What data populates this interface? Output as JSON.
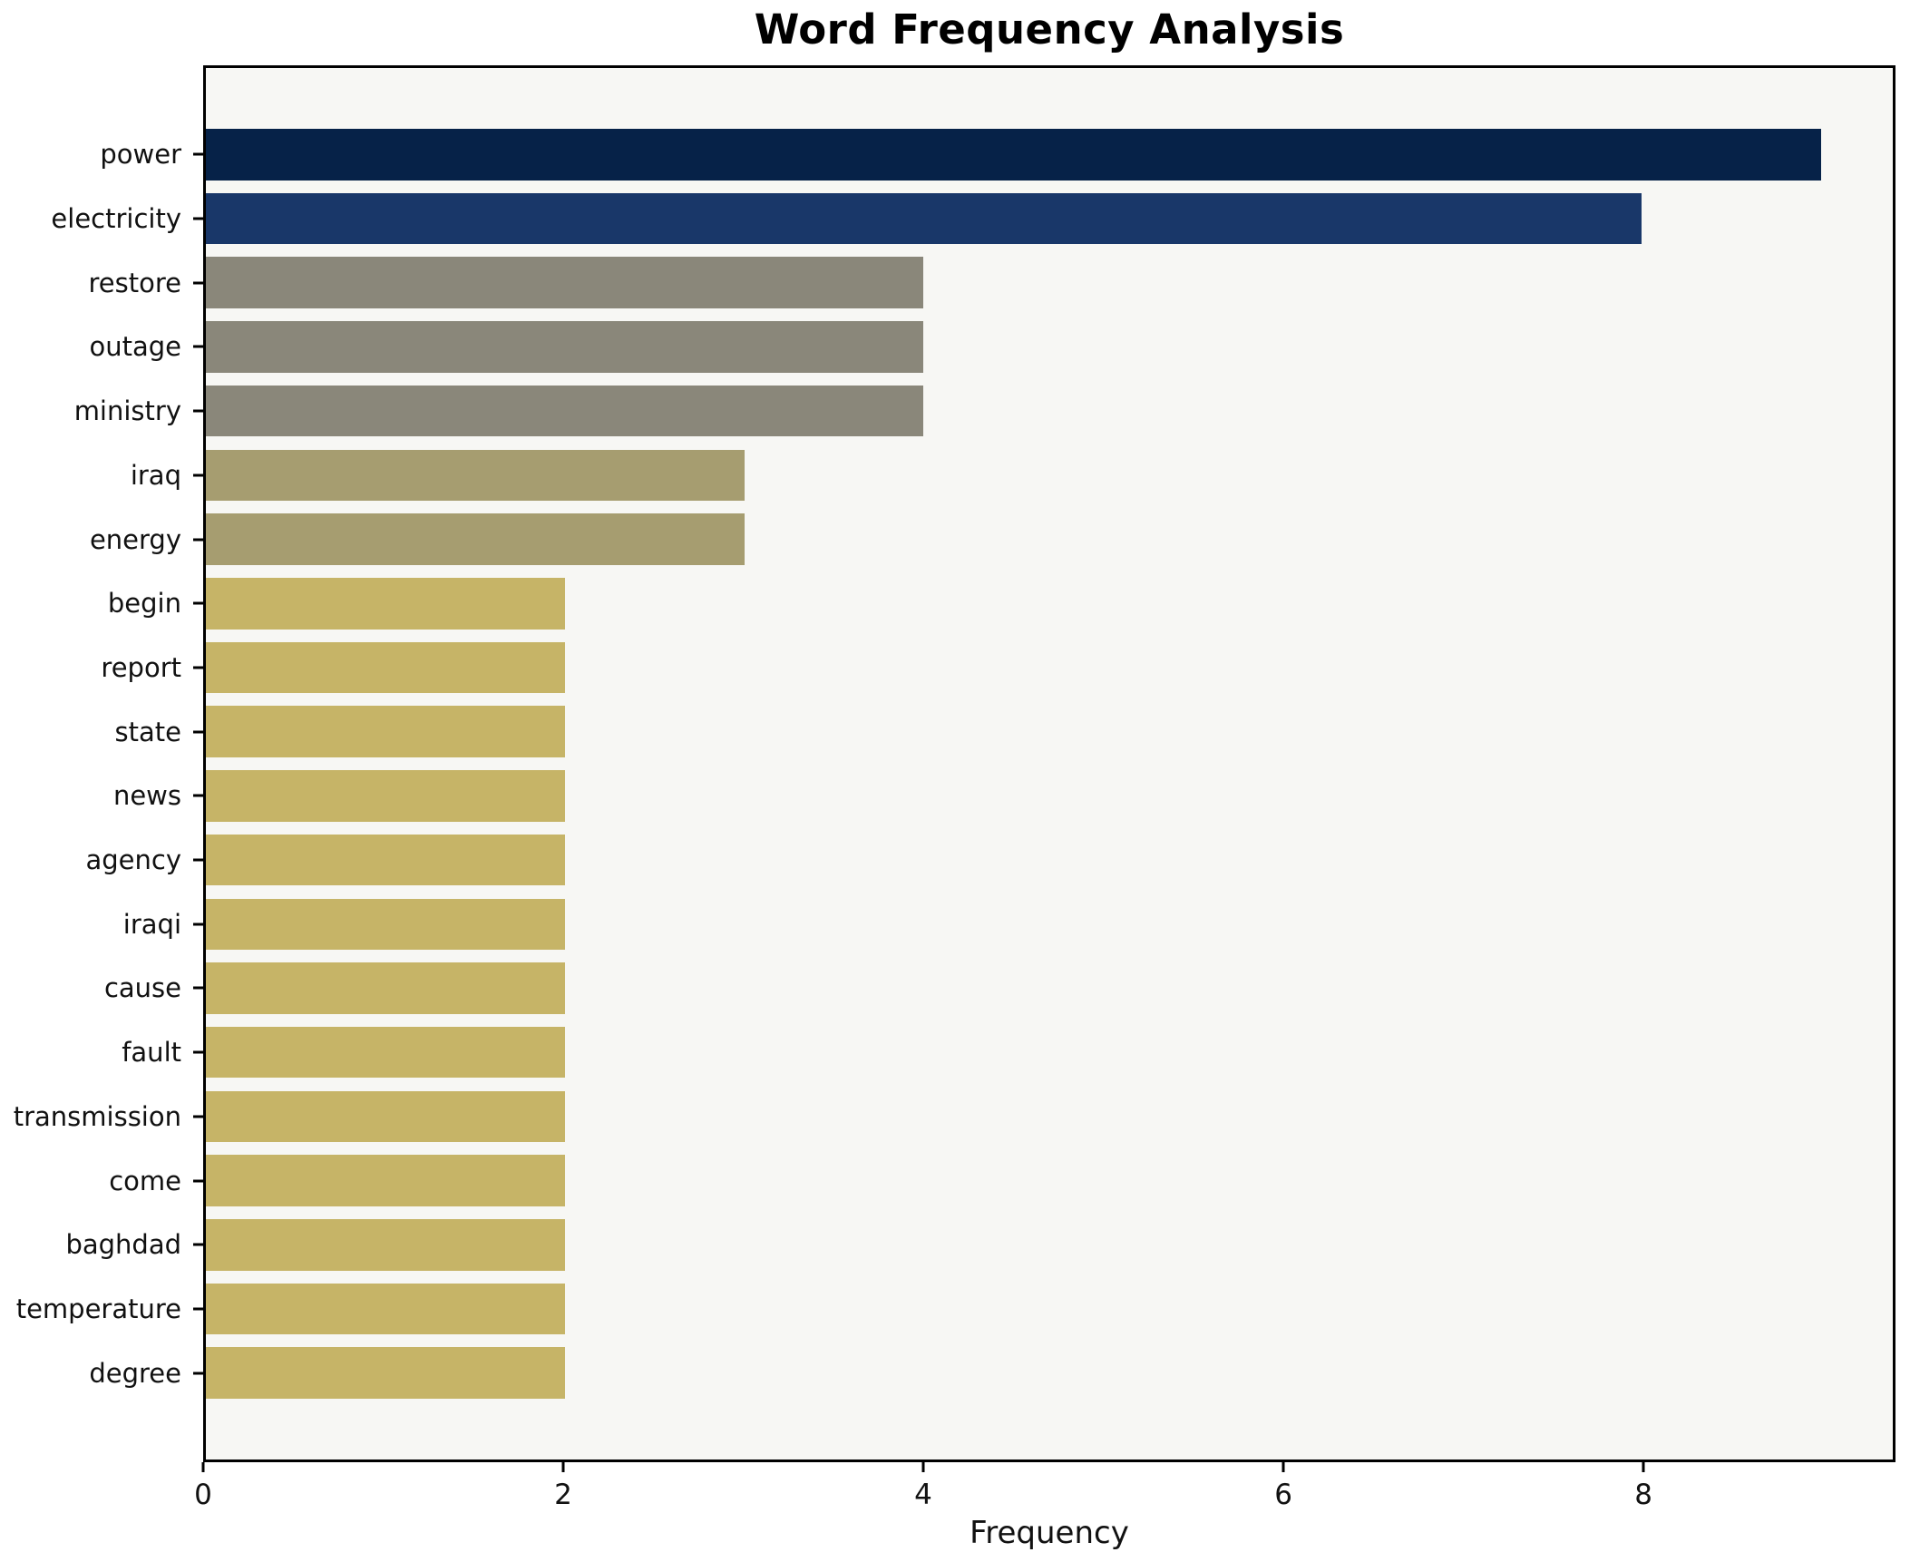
{
  "title": "Word Frequency Analysis",
  "colors": {
    "figure_background": "#ffffff",
    "plot_background": "#f7f7f4",
    "axis": "#000000",
    "text": "#111111",
    "navy_dark": "#062248",
    "navy": "#193769",
    "gray": "#8a877a",
    "olive": "#a69d70",
    "khaki": "#c6b467"
  },
  "chart_data": {
    "type": "bar",
    "orientation": "horizontal",
    "title": "Word Frequency Analysis",
    "xlabel": "Frequency",
    "ylabel": "",
    "xlim": [
      0,
      9.4
    ],
    "x_ticks": [
      0,
      2,
      4,
      6,
      8
    ],
    "grid": false,
    "legend": "none",
    "categories": [
      "power",
      "electricity",
      "restore",
      "outage",
      "ministry",
      "iraq",
      "energy",
      "begin",
      "report",
      "state",
      "news",
      "agency",
      "iraqi",
      "cause",
      "fault",
      "transmission",
      "come",
      "baghdad",
      "temperature",
      "degree"
    ],
    "values": [
      9,
      8,
      4,
      4,
      4,
      3,
      3,
      2,
      2,
      2,
      2,
      2,
      2,
      2,
      2,
      2,
      2,
      2,
      2,
      2
    ],
    "bar_colors": [
      "#062248",
      "#193769",
      "#8a877a",
      "#8a877a",
      "#8a877a",
      "#a69d70",
      "#a69d70",
      "#c6b467",
      "#c6b467",
      "#c6b467",
      "#c6b467",
      "#c6b467",
      "#c6b467",
      "#c6b467",
      "#c6b467",
      "#c6b467",
      "#c6b467",
      "#c6b467",
      "#c6b467",
      "#c6b467"
    ]
  }
}
